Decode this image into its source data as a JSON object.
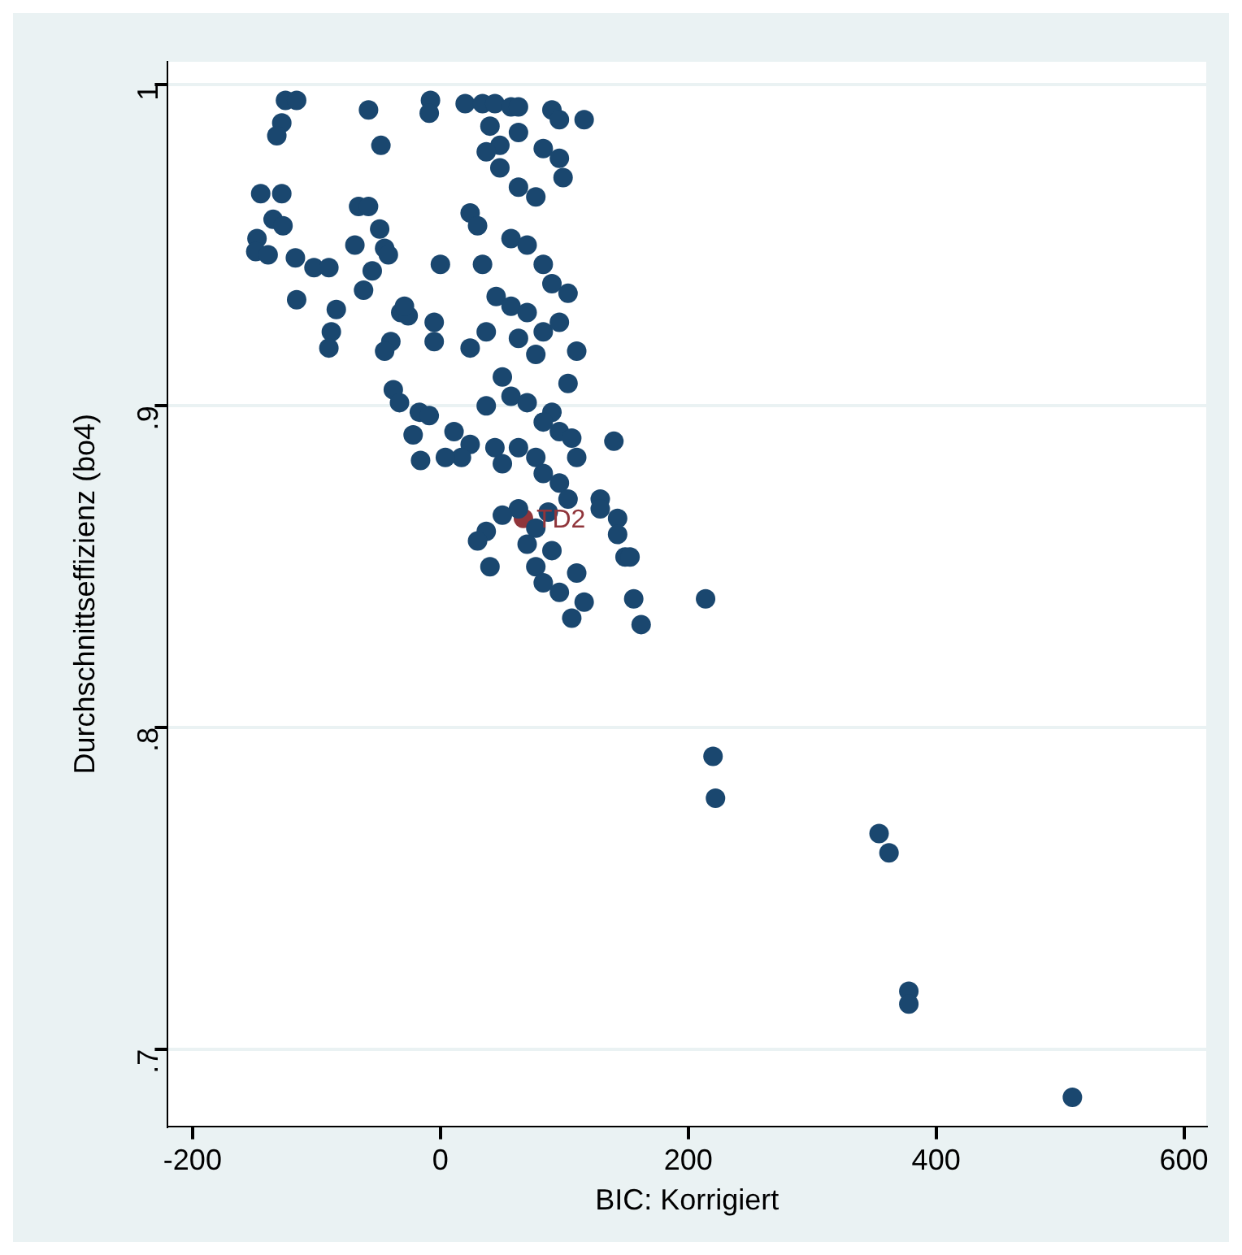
{
  "chart_data": {
    "type": "scatter",
    "xlabel": "BIC: Korrigiert",
    "ylabel": "Durchschnittseffizienz (bo4)",
    "xlim": [
      -220,
      618
    ],
    "ylim": [
      0.676,
      1.007
    ],
    "xticks": [
      -200,
      0,
      200,
      400,
      600
    ],
    "yticks": [
      {
        "value": 0.7,
        "label": ".7"
      },
      {
        "value": 0.8,
        "label": ".8"
      },
      {
        "value": 0.9,
        "label": ".9"
      },
      {
        "value": 1,
        "label": "1"
      }
    ],
    "grid": "y",
    "legend": false,
    "marker": "circle",
    "series": [
      {
        "color": "#1a476f",
        "x": [
          -125,
          -116,
          -128,
          -132,
          -145,
          -128,
          -148,
          -135,
          -127,
          -149,
          -139,
          -117,
          -116,
          -102,
          -90,
          -84,
          -88,
          -90,
          -62,
          -55,
          -66,
          -58,
          -69,
          -49,
          -45,
          -42,
          -48,
          -58,
          -32,
          -26,
          -40,
          -45,
          -29,
          -38,
          -33,
          -17,
          -8,
          -9,
          20,
          34,
          44,
          57,
          63,
          90,
          96,
          116,
          40,
          48,
          63,
          83,
          96,
          37,
          48,
          63,
          77,
          99,
          24,
          30,
          57,
          70,
          83,
          90,
          103,
          34,
          45,
          57,
          70,
          83,
          96,
          63,
          77,
          50,
          57,
          70,
          90,
          83,
          96,
          106,
          110,
          37,
          44,
          50,
          24,
          17,
          4,
          63,
          77,
          83,
          96,
          103,
          87,
          77,
          63,
          50,
          37,
          30,
          70,
          77,
          83,
          90,
          96,
          110,
          116,
          106,
          129,
          140,
          129,
          143,
          143,
          149,
          153,
          156,
          162,
          214,
          220,
          222,
          354,
          362,
          378,
          378,
          510,
          37,
          24,
          11,
          -9,
          -16,
          -22,
          40,
          -5,
          0,
          -5,
          110,
          103
        ],
        "values": [
          0.995,
          0.995,
          0.988,
          0.984,
          0.966,
          0.966,
          0.952,
          0.958,
          0.956,
          0.948,
          0.947,
          0.946,
          0.933,
          0.943,
          0.943,
          0.93,
          0.923,
          0.918,
          0.936,
          0.942,
          0.962,
          0.962,
          0.95,
          0.955,
          0.949,
          0.947,
          0.981,
          0.992,
          0.929,
          0.928,
          0.92,
          0.917,
          0.931,
          0.905,
          0.901,
          0.898,
          0.995,
          0.991,
          0.994,
          0.994,
          0.994,
          0.993,
          0.993,
          0.992,
          0.989,
          0.989,
          0.987,
          0.981,
          0.985,
          0.98,
          0.977,
          0.979,
          0.974,
          0.968,
          0.965,
          0.971,
          0.96,
          0.956,
          0.952,
          0.95,
          0.944,
          0.938,
          0.935,
          0.944,
          0.934,
          0.931,
          0.929,
          0.923,
          0.926,
          0.921,
          0.916,
          0.909,
          0.903,
          0.901,
          0.898,
          0.895,
          0.892,
          0.89,
          0.884,
          0.9,
          0.887,
          0.882,
          0.888,
          0.884,
          0.884,
          0.887,
          0.884,
          0.879,
          0.876,
          0.871,
          0.867,
          0.862,
          0.868,
          0.866,
          0.861,
          0.858,
          0.857,
          0.85,
          0.845,
          0.855,
          0.842,
          0.848,
          0.839,
          0.834,
          0.871,
          0.889,
          0.868,
          0.865,
          0.86,
          0.853,
          0.853,
          0.84,
          0.832,
          0.84,
          0.791,
          0.778,
          0.767,
          0.761,
          0.718,
          0.714,
          0.685,
          0.923,
          0.918,
          0.892,
          0.897,
          0.883,
          0.891,
          0.85,
          0.92,
          0.944,
          0.926,
          0.917,
          0.907
        ]
      },
      {
        "name": "TD2",
        "color": "#90353b",
        "x": [
          67
        ],
        "values": [
          0.865
        ]
      }
    ]
  }
}
